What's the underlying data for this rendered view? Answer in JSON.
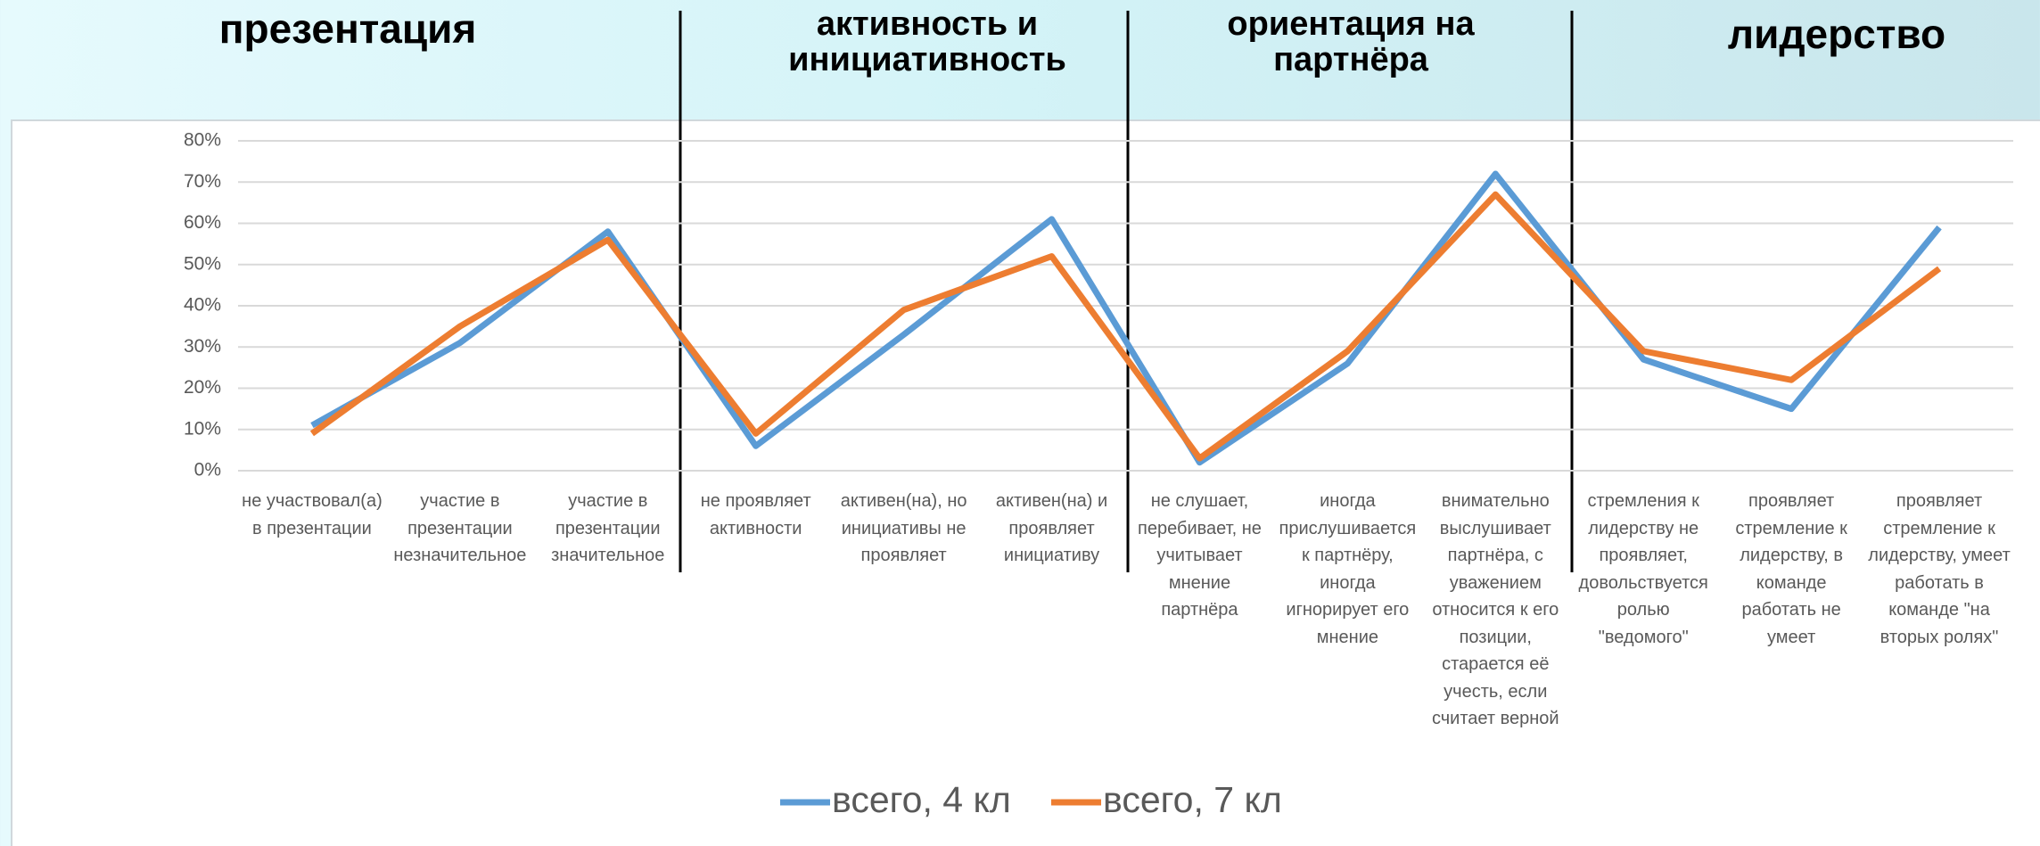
{
  "chart_data": {
    "type": "line",
    "annotations": [
      "презентация",
      "активность и инициативность",
      "ориентация на партнёра",
      "лидерство"
    ],
    "categories": [
      "не участвовал(а) в презентации",
      "участие в презентации незначительное",
      "участие в презентации значительное",
      "не проявляет активности",
      "активен(на), но инициативы не проявляет",
      "активен(на) и проявляет инициативу",
      "не слушает, перебивает, не учитывает мнение партнёра",
      "иногда прислушивается к партнёру, иногда игнорирует его мнение",
      "внимательно выслушивает партнёра, с уважением относится к его позиции, старается её учесть, если считает верной",
      "стремления к лидерству не проявляет, довольствуется ролью \"ведомого\"",
      "проявляет стремление к лидерству, в команде работать не умеет",
      "проявляет стремление к лидерству, умеет работать в команде \"на вторых ролях\""
    ],
    "series": [
      {
        "name": "всего, 4 кл",
        "color": "#5b9bd5",
        "values": [
          11,
          31,
          58,
          6,
          33,
          61,
          2,
          26,
          72,
          27,
          15,
          59
        ]
      },
      {
        "name": "всего, 7 кл",
        "color": "#ed7d31",
        "values": [
          9,
          35,
          56,
          9,
          39,
          52,
          3,
          29,
          67,
          29,
          22,
          49
        ]
      }
    ],
    "ylim": [
      0,
      80
    ],
    "yticks": [
      {
        "value": 0,
        "label": "0%"
      },
      {
        "value": 10,
        "label": "10%"
      },
      {
        "value": 20,
        "label": "20%"
      },
      {
        "value": 30,
        "label": "30%"
      },
      {
        "value": 40,
        "label": "40%"
      },
      {
        "value": 50,
        "label": "50%"
      },
      {
        "value": 60,
        "label": "60%"
      },
      {
        "value": 70,
        "label": "70%"
      },
      {
        "value": 80,
        "label": "80%"
      }
    ],
    "grid": true,
    "legend": "bottom"
  }
}
